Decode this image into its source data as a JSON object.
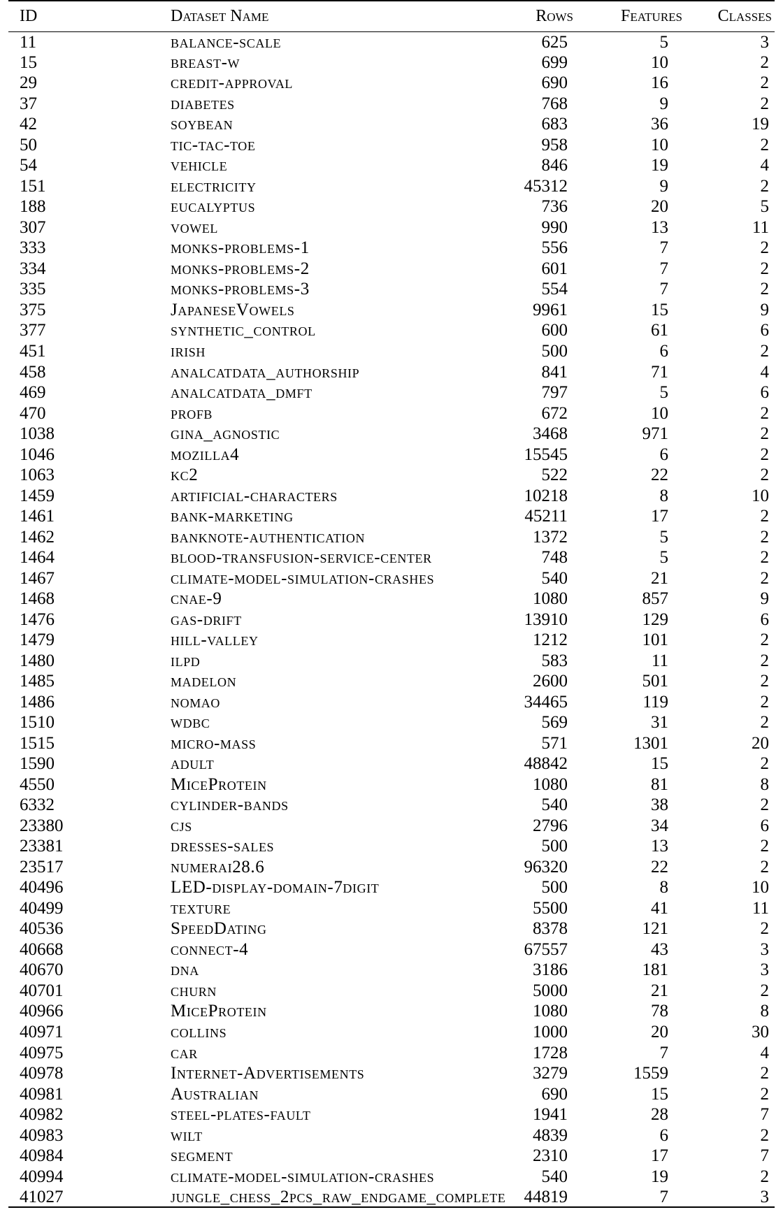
{
  "table": {
    "headers": {
      "id": "ID",
      "name": "Dataset Name",
      "rows": "Rows",
      "features": "Features",
      "classes": "Classes"
    },
    "rows": [
      {
        "id": "11",
        "name": "balance-scale",
        "rows": "625",
        "features": "5",
        "classes": "3"
      },
      {
        "id": "15",
        "name": "breast-w",
        "rows": "699",
        "features": "10",
        "classes": "2"
      },
      {
        "id": "29",
        "name": "credit-approval",
        "rows": "690",
        "features": "16",
        "classes": "2"
      },
      {
        "id": "37",
        "name": "diabetes",
        "rows": "768",
        "features": "9",
        "classes": "2"
      },
      {
        "id": "42",
        "name": "soybean",
        "rows": "683",
        "features": "36",
        "classes": "19"
      },
      {
        "id": "50",
        "name": "tic-tac-toe",
        "rows": "958",
        "features": "10",
        "classes": "2"
      },
      {
        "id": "54",
        "name": "vehicle",
        "rows": "846",
        "features": "19",
        "classes": "4"
      },
      {
        "id": "151",
        "name": "electricity",
        "rows": "45312",
        "features": "9",
        "classes": "2"
      },
      {
        "id": "188",
        "name": "eucalyptus",
        "rows": "736",
        "features": "20",
        "classes": "5"
      },
      {
        "id": "307",
        "name": "vowel",
        "rows": "990",
        "features": "13",
        "classes": "11"
      },
      {
        "id": "333",
        "name": "monks-problems-1",
        "rows": "556",
        "features": "7",
        "classes": "2"
      },
      {
        "id": "334",
        "name": "monks-problems-2",
        "rows": "601",
        "features": "7",
        "classes": "2"
      },
      {
        "id": "335",
        "name": "monks-problems-3",
        "rows": "554",
        "features": "7",
        "classes": "2"
      },
      {
        "id": "375",
        "name": "JapaneseVowels",
        "rows": "9961",
        "features": "15",
        "classes": "9"
      },
      {
        "id": "377",
        "name": "synthetic_control",
        "rows": "600",
        "features": "61",
        "classes": "6"
      },
      {
        "id": "451",
        "name": "irish",
        "rows": "500",
        "features": "6",
        "classes": "2"
      },
      {
        "id": "458",
        "name": "analcatdata_authorship",
        "rows": "841",
        "features": "71",
        "classes": "4"
      },
      {
        "id": "469",
        "name": "analcatdata_dmft",
        "rows": "797",
        "features": "5",
        "classes": "6"
      },
      {
        "id": "470",
        "name": "profb",
        "rows": "672",
        "features": "10",
        "classes": "2"
      },
      {
        "id": "1038",
        "name": "gina_agnostic",
        "rows": "3468",
        "features": "971",
        "classes": "2"
      },
      {
        "id": "1046",
        "name": "mozilla4",
        "rows": "15545",
        "features": "6",
        "classes": "2"
      },
      {
        "id": "1063",
        "name": "kc2",
        "rows": "522",
        "features": "22",
        "classes": "2"
      },
      {
        "id": "1459",
        "name": "artificial-characters",
        "rows": "10218",
        "features": "8",
        "classes": "10"
      },
      {
        "id": "1461",
        "name": "bank-marketing",
        "rows": "45211",
        "features": "17",
        "classes": "2"
      },
      {
        "id": "1462",
        "name": "banknote-authentication",
        "rows": "1372",
        "features": "5",
        "classes": "2"
      },
      {
        "id": "1464",
        "name": "blood-transfusion-service-center",
        "rows": "748",
        "features": "5",
        "classes": "2"
      },
      {
        "id": "1467",
        "name": "climate-model-simulation-crashes",
        "rows": "540",
        "features": "21",
        "classes": "2"
      },
      {
        "id": "1468",
        "name": "cnae-9",
        "rows": "1080",
        "features": "857",
        "classes": "9"
      },
      {
        "id": "1476",
        "name": "gas-drift",
        "rows": "13910",
        "features": "129",
        "classes": "6"
      },
      {
        "id": "1479",
        "name": "hill-valley",
        "rows": "1212",
        "features": "101",
        "classes": "2"
      },
      {
        "id": "1480",
        "name": "ilpd",
        "rows": "583",
        "features": "11",
        "classes": "2"
      },
      {
        "id": "1485",
        "name": "madelon",
        "rows": "2600",
        "features": "501",
        "classes": "2"
      },
      {
        "id": "1486",
        "name": "nomao",
        "rows": "34465",
        "features": "119",
        "classes": "2"
      },
      {
        "id": "1510",
        "name": "wdbc",
        "rows": "569",
        "features": "31",
        "classes": "2"
      },
      {
        "id": "1515",
        "name": "micro-mass",
        "rows": "571",
        "features": "1301",
        "classes": "20"
      },
      {
        "id": "1590",
        "name": "adult",
        "rows": "48842",
        "features": "15",
        "classes": "2"
      },
      {
        "id": "4550",
        "name": "MiceProtein",
        "rows": "1080",
        "features": "81",
        "classes": "8"
      },
      {
        "id": "6332",
        "name": "cylinder-bands",
        "rows": "540",
        "features": "38",
        "classes": "2"
      },
      {
        "id": "23380",
        "name": "cjs",
        "rows": "2796",
        "features": "34",
        "classes": "6"
      },
      {
        "id": "23381",
        "name": "dresses-sales",
        "rows": "500",
        "features": "13",
        "classes": "2"
      },
      {
        "id": "23517",
        "name": "numerai28.6",
        "rows": "96320",
        "features": "22",
        "classes": "2"
      },
      {
        "id": "40496",
        "name": "LED-display-domain-7digit",
        "rows": "500",
        "features": "8",
        "classes": "10"
      },
      {
        "id": "40499",
        "name": "texture",
        "rows": "5500",
        "features": "41",
        "classes": "11"
      },
      {
        "id": "40536",
        "name": "SpeedDating",
        "rows": "8378",
        "features": "121",
        "classes": "2"
      },
      {
        "id": "40668",
        "name": "connect-4",
        "rows": "67557",
        "features": "43",
        "classes": "3"
      },
      {
        "id": "40670",
        "name": "dna",
        "rows": "3186",
        "features": "181",
        "classes": "3"
      },
      {
        "id": "40701",
        "name": "churn",
        "rows": "5000",
        "features": "21",
        "classes": "2"
      },
      {
        "id": "40966",
        "name": "MiceProtein",
        "rows": "1080",
        "features": "78",
        "classes": "8"
      },
      {
        "id": "40971",
        "name": "collins",
        "rows": "1000",
        "features": "20",
        "classes": "30"
      },
      {
        "id": "40975",
        "name": "car",
        "rows": "1728",
        "features": "7",
        "classes": "4"
      },
      {
        "id": "40978",
        "name": "Internet-Advertisements",
        "rows": "3279",
        "features": "1559",
        "classes": "2"
      },
      {
        "id": "40981",
        "name": "Australian",
        "rows": "690",
        "features": "15",
        "classes": "2"
      },
      {
        "id": "40982",
        "name": "steel-plates-fault",
        "rows": "1941",
        "features": "28",
        "classes": "7"
      },
      {
        "id": "40983",
        "name": "wilt",
        "rows": "4839",
        "features": "6",
        "classes": "2"
      },
      {
        "id": "40984",
        "name": "segment",
        "rows": "2310",
        "features": "17",
        "classes": "7"
      },
      {
        "id": "40994",
        "name": "climate-model-simulation-crashes",
        "rows": "540",
        "features": "19",
        "classes": "2"
      },
      {
        "id": "41027",
        "name": "jungle_chess_2pcs_raw_endgame_complete",
        "rows": "44819",
        "features": "7",
        "classes": "3"
      }
    ]
  }
}
